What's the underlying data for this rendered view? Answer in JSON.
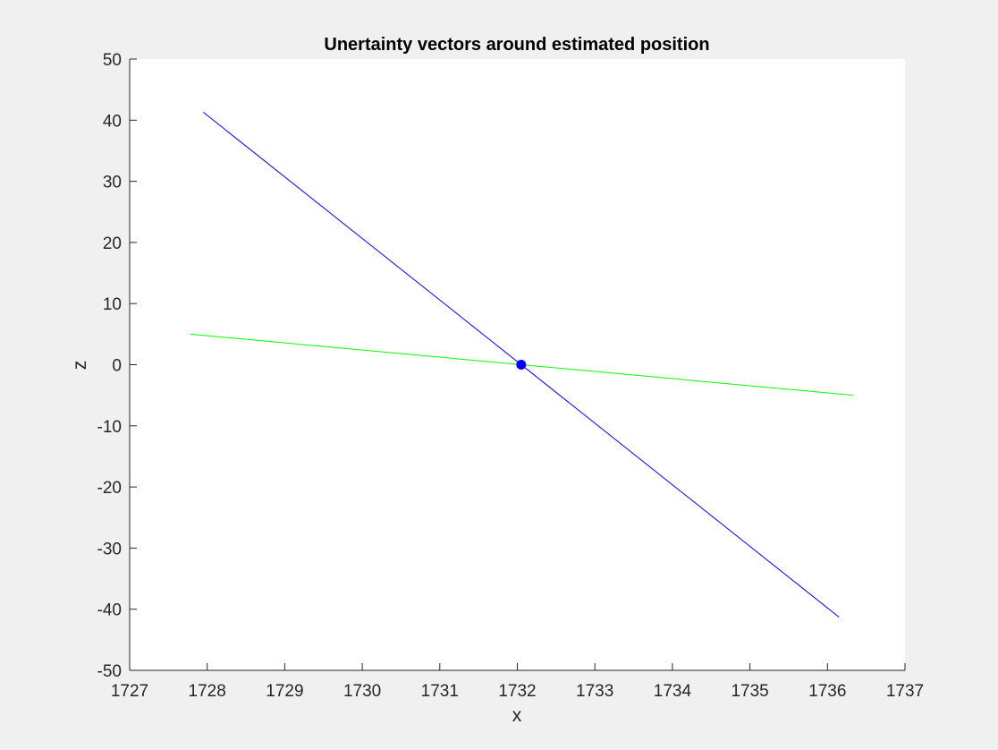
{
  "chart_data": {
    "type": "line",
    "title": "Unertainty vectors around estimated position",
    "xlabel": "x",
    "ylabel": "z",
    "xlim": [
      1727,
      1737
    ],
    "ylim": [
      -50,
      50
    ],
    "xticks": [
      1727,
      1728,
      1729,
      1730,
      1731,
      1732,
      1733,
      1734,
      1735,
      1736,
      1737
    ],
    "yticks": [
      -50,
      -40,
      -30,
      -20,
      -10,
      0,
      10,
      20,
      30,
      40,
      50
    ],
    "grid": false,
    "series": [
      {
        "color": "#0000ff",
        "x": [
          1727.95,
          1736.15
        ],
        "y": [
          41.3,
          -41.3
        ]
      },
      {
        "color": "#00ff00",
        "x": [
          1727.78,
          1736.33
        ],
        "y": [
          5.0,
          -5.0
        ]
      }
    ],
    "points": [
      {
        "x": 1732.05,
        "y": 0,
        "color": "#0000ff"
      }
    ]
  }
}
